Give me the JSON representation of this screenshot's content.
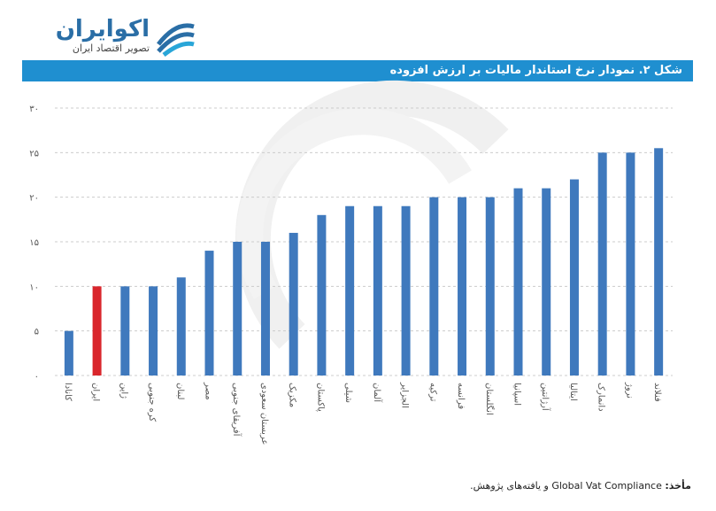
{
  "header": {
    "logo_name": "اکوایران",
    "logo_tagline": "تصویر اقتصاد ایران"
  },
  "chart_data": {
    "type": "bar",
    "title": "شکل ۲. نمودار نرخ استاندار مالیات بر ارزش افزوده",
    "source_label": "مأخذ:",
    "source": "Global Vat Compliance و یافته‌های پژوهش.",
    "categories": [
      "کانادا",
      "ایران",
      "ژاپن",
      "کره جنوبی",
      "لبنان",
      "مصر",
      "آفریقای جنوبی",
      "عربستان سعودی",
      "مکزیک",
      "پاکستان",
      "شیلی",
      "آلمان",
      "الجزایر",
      "ترکیه",
      "فرانسه",
      "انگلستان",
      "اسپانیا",
      "آرژانتین",
      "ایتالیا",
      "دانمارک",
      "نروژ",
      "فنلاند"
    ],
    "values": [
      5,
      10,
      10,
      10,
      11,
      14,
      15,
      15,
      16,
      18,
      19,
      19,
      19,
      20,
      20,
      20,
      21,
      21,
      22,
      25,
      25,
      25.5
    ],
    "colors": [
      "#3f79bd",
      "#d9262c",
      "#3f79bd",
      "#3f79bd",
      "#3f79bd",
      "#3f79bd",
      "#3f79bd",
      "#3f79bd",
      "#3f79bd",
      "#3f79bd",
      "#3f79bd",
      "#3f79bd",
      "#3f79bd",
      "#3f79bd",
      "#3f79bd",
      "#3f79bd",
      "#3f79bd",
      "#3f79bd",
      "#3f79bd",
      "#3f79bd",
      "#3f79bd",
      "#3f79bd"
    ],
    "ylim": [
      0,
      30
    ],
    "yticks": [
      {
        "value": 0,
        "label": "۰"
      },
      {
        "value": 5,
        "label": "۵"
      },
      {
        "value": 10,
        "label": "۱۰"
      },
      {
        "value": 15,
        "label": "۱۵"
      },
      {
        "value": 20,
        "label": "۲۰"
      },
      {
        "value": 25,
        "label": "۲۵"
      },
      {
        "value": 30,
        "label": "۳۰"
      }
    ],
    "grid": true
  }
}
